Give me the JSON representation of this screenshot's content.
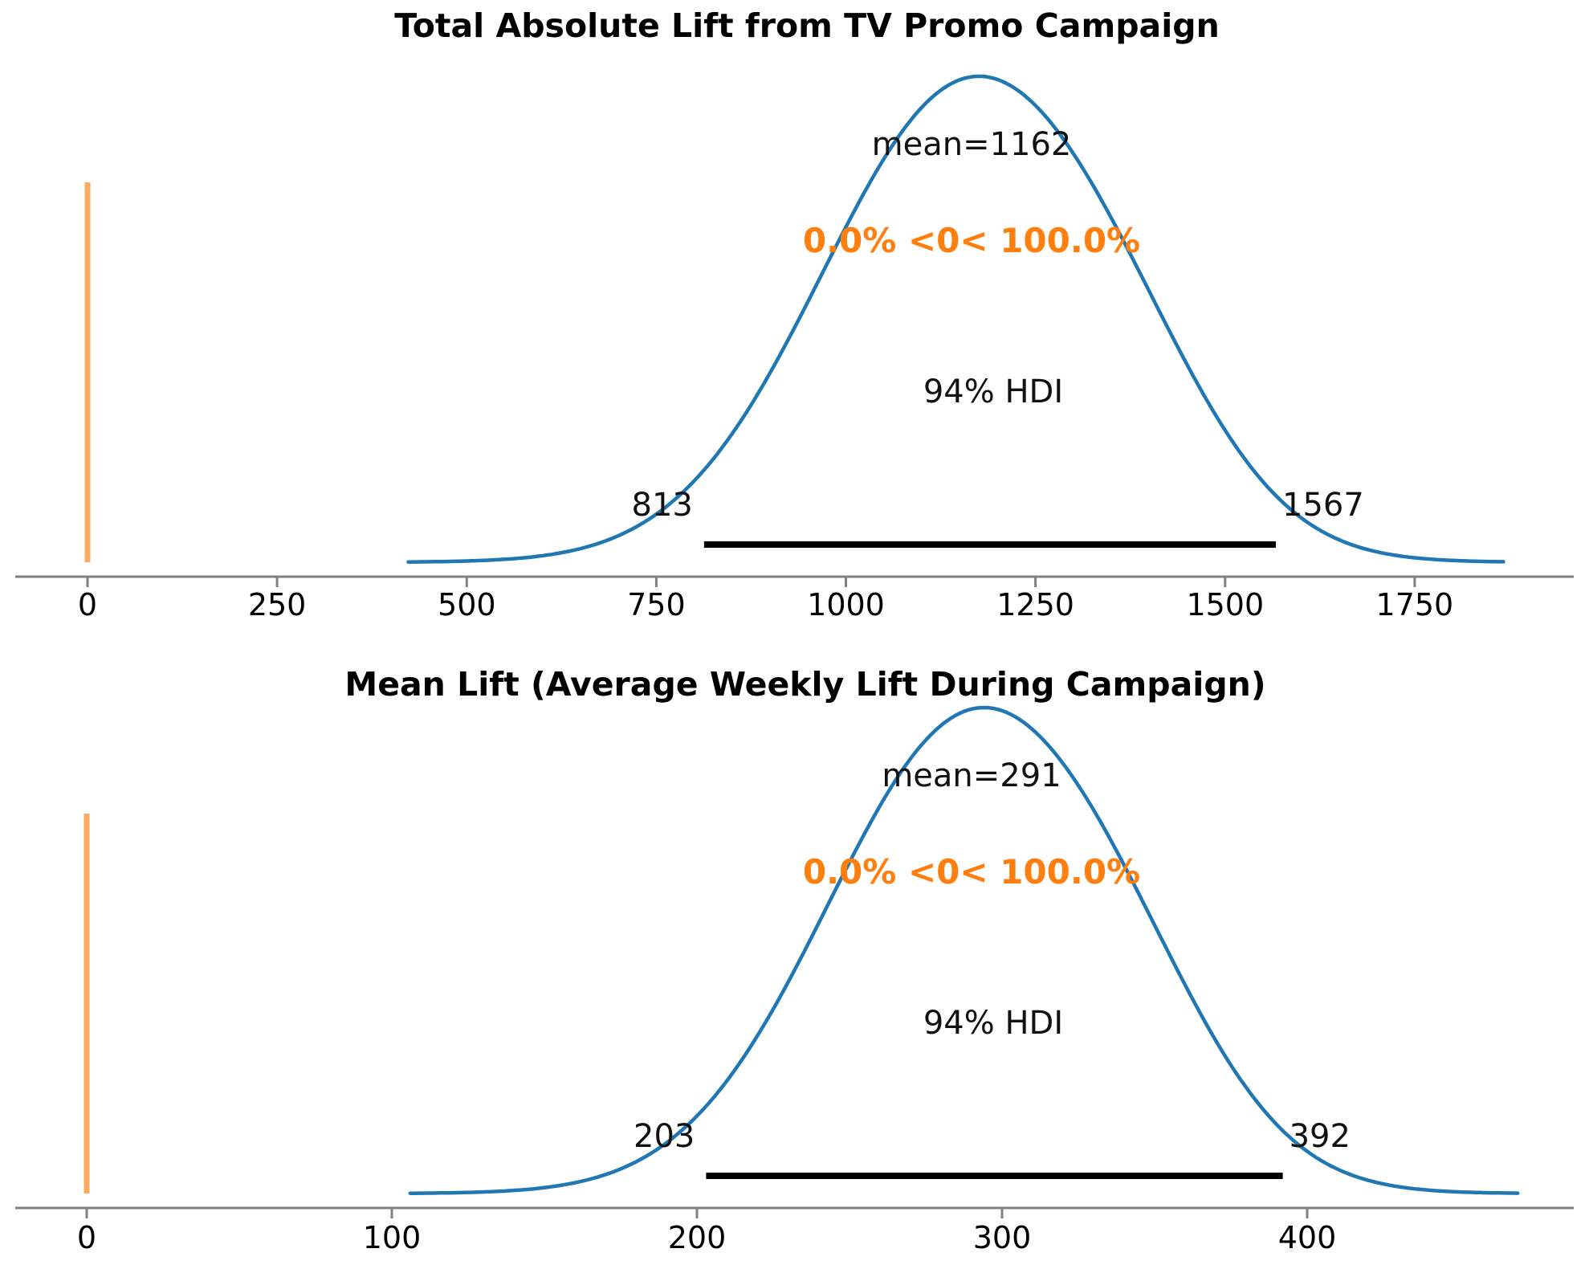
{
  "figure": {
    "background": "#ffffff",
    "kind": "posterior-plot-pair"
  },
  "colors": {
    "density_curve": "#1f77b4",
    "ref_line": "#fbaa60",
    "ref_text": "#ff7f0e",
    "hdi_bar": "#000000",
    "axis": "#808080",
    "text": "#000000",
    "background": "#ffffff"
  },
  "chart_data": [
    {
      "type": "area",
      "subtype": "posterior-density-kde",
      "title": "Total Absolute Lift from TV Promo Campaign",
      "mean": 1162,
      "mean_label": "mean=1162",
      "hdi": {
        "probability": "94% HDI",
        "lower": 813,
        "upper": 1567
      },
      "ref_val": {
        "value": 0,
        "label": "0.0% <0< 100.0%",
        "pct_below": "0.0%",
        "pct_above": "100.0%"
      },
      "x_ticks": [
        0,
        250,
        500,
        750,
        1000,
        1250,
        1500,
        1750
      ],
      "x_range_est": [
        -95,
        1960
      ],
      "grid": false,
      "legend": "none",
      "density_estimate": {
        "support": [
          423,
          1867
        ],
        "mode": 1155,
        "sd": 190,
        "shoulder_mode": 1370,
        "shoulder_sd": 130,
        "shoulder_weight": 0.15
      }
    },
    {
      "type": "area",
      "subtype": "posterior-density-kde",
      "title": "Mean Lift (Average Weekly Lift During Campaign)",
      "mean": 291,
      "mean_label": "mean=291",
      "hdi": {
        "probability": "94% HDI",
        "lower": 203,
        "upper": 392
      },
      "ref_val": {
        "value": 0,
        "label": "0.0% <0< 100.0%",
        "pct_below": "0.0%",
        "pct_above": "100.0%"
      },
      "x_ticks": [
        0,
        100,
        200,
        300,
        400
      ],
      "x_range_est": [
        -23,
        492
      ],
      "grid": false,
      "legend": "none",
      "density_estimate": {
        "support": [
          106,
          469
        ],
        "mode": 289,
        "sd": 47,
        "shoulder_mode": 342,
        "shoulder_sd": 32,
        "shoulder_weight": 0.15
      }
    }
  ]
}
